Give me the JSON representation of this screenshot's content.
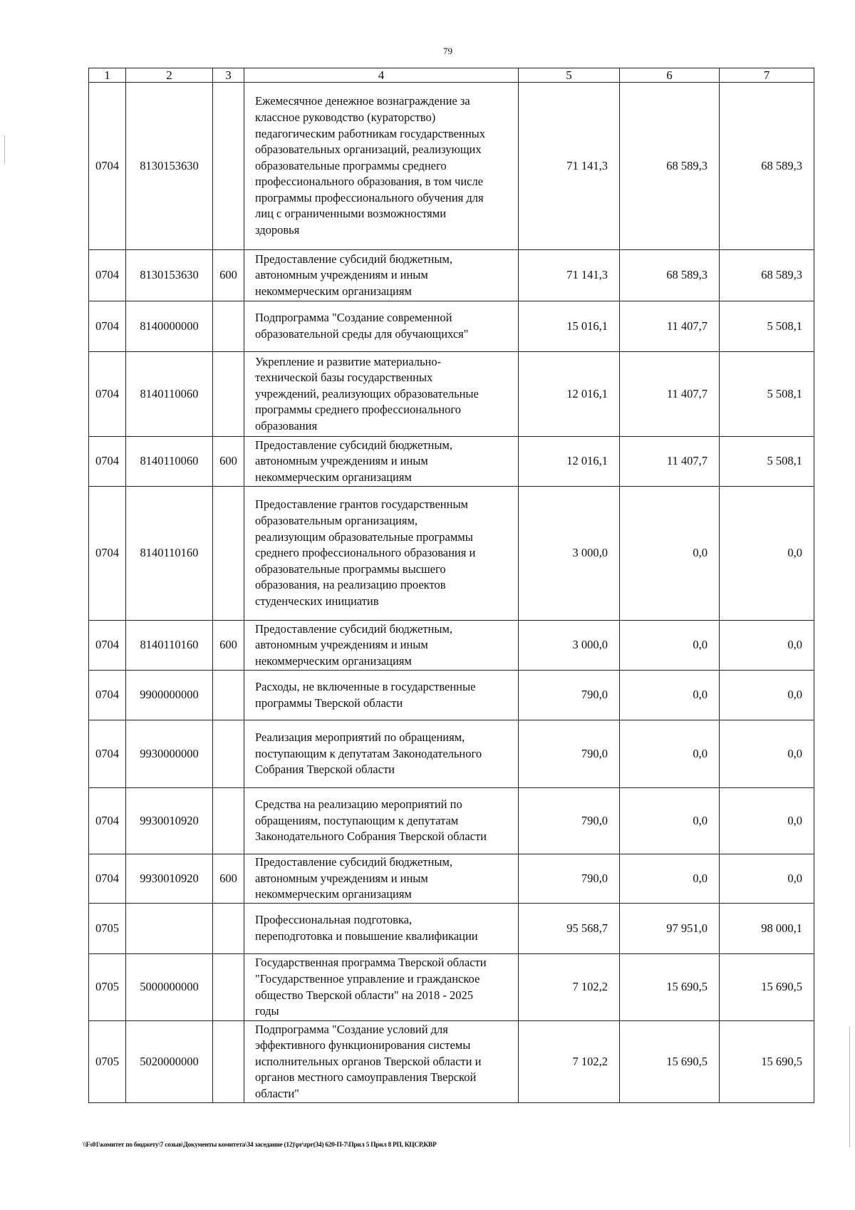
{
  "page_number": "79",
  "table": {
    "headers": [
      "1",
      "2",
      "3",
      "4",
      "5",
      "6",
      "7"
    ],
    "rows": [
      {
        "c1": "0704",
        "c2": "8130153630",
        "c3": "",
        "c4": "Ежемесячное денежное вознаграждение за\nклассное руководство (кураторство)\nпедагогическим работникам государственных\nобразовательных организаций, реализующих\nобразовательные программы среднего\nпрофессионального образования, в том числе\nпрограммы профессионального обучения для\nлиц с ограниченными возможностями\nздоровья",
        "c5": "71 141,3",
        "c6": "68 589,3",
        "c7": "68 589,3"
      },
      {
        "c1": "0704",
        "c2": "8130153630",
        "c3": "600",
        "c4": "Предоставление субсидий бюджетным,\nавтономным учреждениям и иным\nнекоммерческим организациям",
        "c5": "71 141,3",
        "c6": "68 589,3",
        "c7": "68 589,3"
      },
      {
        "c1": "0704",
        "c2": "8140000000",
        "c3": "",
        "c4": "Подпрограмма \"Создание современной\nобразовательной среды для обучающихся\"",
        "c5": "15 016,1",
        "c6": "11 407,7",
        "c7": "5 508,1"
      },
      {
        "c1": "0704",
        "c2": "8140110060",
        "c3": "",
        "c4": "Укрепление и развитие материально-\nтехнической базы государственных\nучреждений, реализующих образовательные\nпрограммы среднего профессионального\nобразования",
        "c5": "12 016,1",
        "c6": "11 407,7",
        "c7": "5 508,1"
      },
      {
        "c1": "0704",
        "c2": "8140110060",
        "c3": "600",
        "c4": "Предоставление субсидий бюджетным,\nавтономным учреждениям и иным\nнекоммерческим организациям",
        "c5": "12 016,1",
        "c6": "11 407,7",
        "c7": "5 508,1"
      },
      {
        "c1": "0704",
        "c2": "8140110160",
        "c3": "",
        "c4": "Предоставление грантов государственным\nобразовательным организациям,\nреализующим образовательные программы\nсреднего профессионального образования и\nобразовательные программы высшего\nобразования, на реализацию проектов\nстуденческих инициатив",
        "c5": "3 000,0",
        "c6": "0,0",
        "c7": "0,0"
      },
      {
        "c1": "0704",
        "c2": "8140110160",
        "c3": "600",
        "c4": "Предоставление субсидий бюджетным,\nавтономным учреждениям и иным\nнекоммерческим организациям",
        "c5": "3 000,0",
        "c6": "0,0",
        "c7": "0,0"
      },
      {
        "c1": "0704",
        "c2": "9900000000",
        "c3": "",
        "c4": "Расходы, не включенные в государственные\nпрограммы Тверской области",
        "c5": "790,0",
        "c6": "0,0",
        "c7": "0,0"
      },
      {
        "c1": "0704",
        "c2": "9930000000",
        "c3": "",
        "c4": "Реализация мероприятий по обращениям,\nпоступающим к депутатам Законодательного\nСобрания Тверской области",
        "c5": "790,0",
        "c6": "0,0",
        "c7": "0,0"
      },
      {
        "c1": "0704",
        "c2": "9930010920",
        "c3": "",
        "c4": "Средства на реализацию мероприятий по\nобращениям, поступающим к депутатам\nЗаконодательного Собрания Тверской области",
        "c5": "790,0",
        "c6": "0,0",
        "c7": "0,0"
      },
      {
        "c1": "0704",
        "c2": "9930010920",
        "c3": "600",
        "c4": "Предоставление субсидий бюджетным,\nавтономным учреждениям и иным\nнекоммерческим организациям",
        "c5": "790,0",
        "c6": "0,0",
        "c7": "0,0"
      },
      {
        "c1": "0705",
        "c2": "",
        "c3": "",
        "c4": "Профессиональная подготовка,\nпереподготовка и повышение квалификации",
        "c5": "95 568,7",
        "c6": "97 951,0",
        "c7": "98 000,1"
      },
      {
        "c1": "0705",
        "c2": "5000000000",
        "c3": "",
        "c4": "Государственная программа Тверской области\n\"Государственное управление и гражданское\nобщество Тверской области\" на 2018 - 2025\nгоды",
        "c5": "7 102,2",
        "c6": "15 690,5",
        "c7": "15 690,5"
      },
      {
        "c1": "0705",
        "c2": "5020000000",
        "c3": "",
        "c4": "Подпрограмма \"Создание условий для\nэффективного функционирования системы\nисполнительных органов Тверской области и\nорганов местного самоуправления Тверской\nобласти\"",
        "c5": "7 102,2",
        "c6": "15 690,5",
        "c7": "15 690,5"
      }
    ]
  },
  "footer_path": "\\\\Fs01\\комитет по бюджету\\7 созыв\\Документы комитета\\34 заседание (12)\\pr\\zpr(34) 620-П-7\\Прил 5 Прил 8 РП, КЦСР,КВР"
}
